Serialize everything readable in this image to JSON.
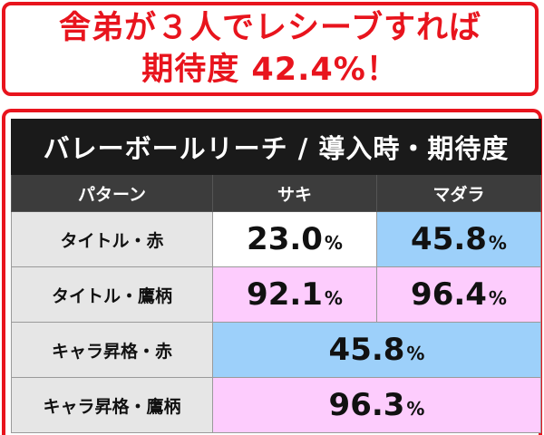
{
  "headline": {
    "line1": "舎弟が３人でレシーブすれば",
    "line2": "期待度 42.4%！"
  },
  "table": {
    "title": "バレーボールリーチ / 導入時・期待度",
    "headers": {
      "pattern": "パターン",
      "saki": "サキ",
      "madara": "マダラ"
    },
    "rows": [
      {
        "label": "タイトル・赤",
        "saki": "23.0",
        "madara": "45.8"
      },
      {
        "label": "タイトル・鷹柄",
        "saki": "92.1",
        "madara": "96.4"
      },
      {
        "label": "キャラ昇格・赤",
        "merged": "45.8"
      },
      {
        "label": "キャラ昇格・鷹柄",
        "merged": "96.3"
      }
    ],
    "unit": "%"
  },
  "colors": {
    "accent_red": "#e8141d",
    "header_dark": "#1a1a1a",
    "cell_blue": "#9dd0fa",
    "cell_pink": "#fdccfd",
    "label_gray": "#e6e6e6"
  }
}
